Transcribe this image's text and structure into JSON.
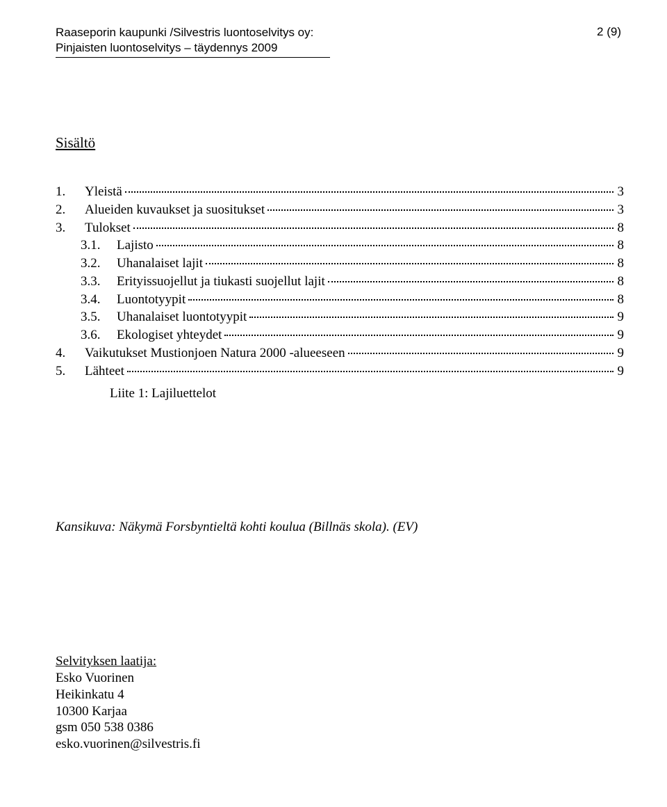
{
  "header": {
    "line1": "Raaseporin kaupunki /Silvestris luontoselvitys oy:",
    "line2": "Pinjaisten luontoselvitys – täydennys 2009",
    "page_indicator": "2 (9)"
  },
  "toc_title": "Sisältö",
  "toc": [
    {
      "level": 1,
      "num": "1.",
      "label": "Yleistä",
      "page": "3"
    },
    {
      "level": 1,
      "num": "2.",
      "label": "Alueiden kuvaukset ja suositukset",
      "page": "3"
    },
    {
      "level": 1,
      "num": "3.",
      "label": "Tulokset",
      "page": "8"
    },
    {
      "level": 2,
      "num": "3.1.",
      "label": "Lajisto",
      "page": "8"
    },
    {
      "level": 2,
      "num": "3.2.",
      "label": "Uhanalaiset lajit",
      "page": "8"
    },
    {
      "level": 2,
      "num": "3.3.",
      "label": "Erityissuojellut ja tiukasti suojellut lajit",
      "page": "8"
    },
    {
      "level": 2,
      "num": "3.4.",
      "label": "Luontotyypit",
      "page": "8"
    },
    {
      "level": 2,
      "num": "3.5.",
      "label": "Uhanalaiset luontotyypit",
      "page": "9"
    },
    {
      "level": 2,
      "num": "3.6.",
      "label": "Ekologiset yhteydet",
      "page": "9"
    },
    {
      "level": 1,
      "num": "4.",
      "label": "Vaikutukset Mustionjoen Natura 2000 -alueeseen",
      "page": "9"
    },
    {
      "level": 1,
      "num": "5.",
      "label": "Lähteet",
      "page": "9"
    }
  ],
  "appendix": "Liite 1: Lajiluettelot",
  "caption": "Kansikuva: Näkymä Forsbyntieltä kohti koulua (Billnäs skola). (EV)",
  "author": {
    "heading": "Selvityksen laatija:",
    "name": "Esko Vuorinen",
    "address": "Heikinkatu 4",
    "postal": "10300 Karjaa",
    "phone": "gsm 050 538 0386",
    "email": "esko.vuorinen@silvestris.fi"
  }
}
